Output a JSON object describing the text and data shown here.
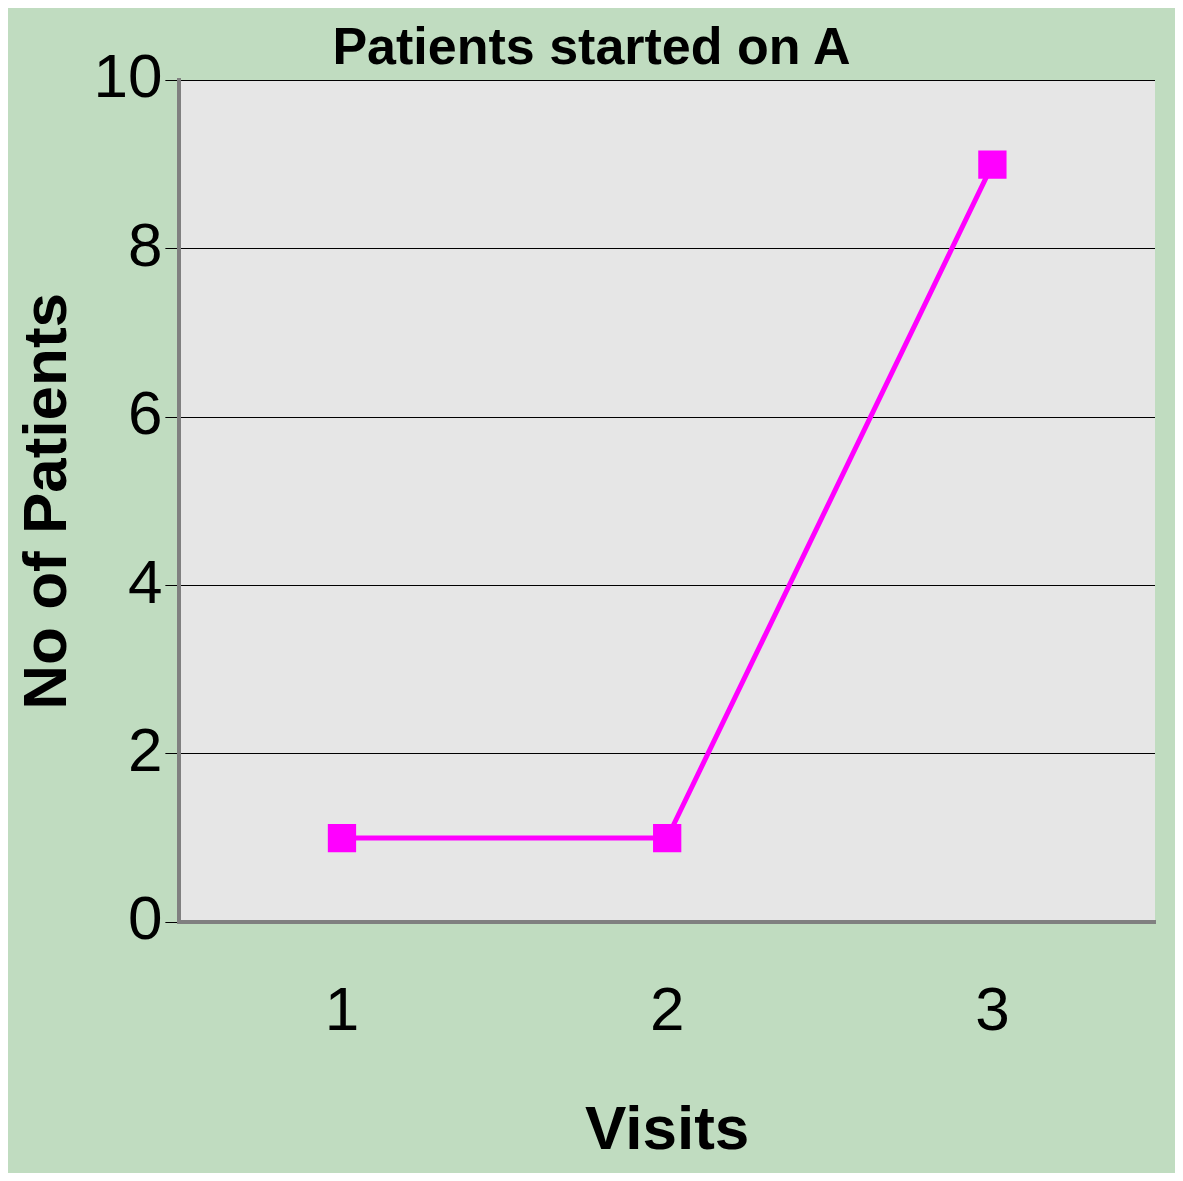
{
  "chart_data": {
    "type": "line",
    "title": "Patients started on A",
    "xlabel": "Visits",
    "ylabel": "No of Patients",
    "categories": [
      "1",
      "2",
      "3"
    ],
    "series": [
      {
        "color": "#ff00ff",
        "values": [
          1,
          1,
          9
        ]
      }
    ],
    "ylim": [
      0,
      10
    ],
    "yticks": [
      0,
      2,
      4,
      6,
      8,
      10
    ],
    "grid": "y",
    "legend": false,
    "marker": "square",
    "line_style": "solid"
  }
}
